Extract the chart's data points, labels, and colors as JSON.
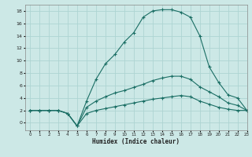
{
  "xlabel": "Humidex (Indice chaleur)",
  "ylabel": "",
  "background_color": "#cce8e6",
  "grid_color": "#aed4d2",
  "line_color": "#1a6e64",
  "xlim": [
    -0.5,
    23
  ],
  "ylim": [
    -1.2,
    19
  ],
  "xtick_labels": [
    "0",
    "1",
    "2",
    "3",
    "4",
    "5",
    "6",
    "7",
    "8",
    "9",
    "10",
    "11",
    "12",
    "13",
    "14",
    "15",
    "16",
    "17",
    "18",
    "19",
    "20",
    "21",
    "22",
    "23"
  ],
  "xtick_positions": [
    0,
    1,
    2,
    3,
    4,
    5,
    6,
    7,
    8,
    9,
    10,
    11,
    12,
    13,
    14,
    15,
    16,
    17,
    18,
    19,
    20,
    21,
    22,
    23
  ],
  "yticks": [
    0,
    2,
    4,
    6,
    8,
    10,
    12,
    14,
    16,
    18
  ],
  "line1_x": [
    0,
    1,
    2,
    3,
    4,
    5,
    6,
    7,
    8,
    9,
    10,
    11,
    12,
    13,
    14,
    15,
    16,
    17,
    18,
    19,
    20,
    21,
    22,
    23
  ],
  "line1_y": [
    2,
    2,
    2,
    2,
    1.5,
    -0.5,
    3.5,
    7,
    9.5,
    11,
    13,
    14.5,
    17,
    18,
    18.2,
    18.2,
    17.8,
    17,
    14,
    9,
    6.5,
    4.5,
    4,
    2
  ],
  "line2_x": [
    0,
    1,
    2,
    3,
    4,
    5,
    6,
    7,
    8,
    9,
    10,
    11,
    12,
    13,
    14,
    15,
    16,
    17,
    18,
    19,
    20,
    21,
    22,
    23
  ],
  "line2_y": [
    2,
    2,
    2,
    2,
    1.5,
    -0.5,
    2.5,
    3.5,
    4.2,
    4.8,
    5.2,
    5.7,
    6.2,
    6.8,
    7.2,
    7.5,
    7.5,
    7.0,
    5.8,
    5.0,
    4.2,
    3.2,
    2.8,
    2
  ],
  "line3_x": [
    0,
    1,
    2,
    3,
    4,
    5,
    6,
    7,
    8,
    9,
    10,
    11,
    12,
    13,
    14,
    15,
    16,
    17,
    18,
    19,
    20,
    21,
    22,
    23
  ],
  "line3_y": [
    2,
    2,
    2,
    2,
    1.5,
    -0.5,
    1.5,
    2.0,
    2.3,
    2.6,
    2.9,
    3.2,
    3.5,
    3.8,
    4.0,
    4.2,
    4.4,
    4.2,
    3.5,
    3.0,
    2.5,
    2.2,
    2.0,
    2
  ]
}
